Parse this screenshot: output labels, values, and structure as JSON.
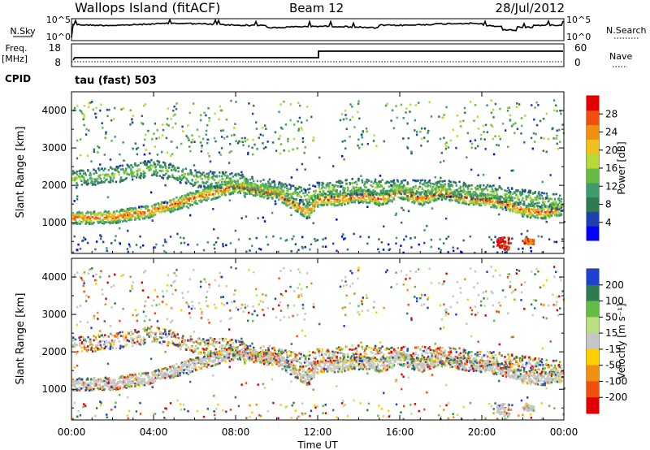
{
  "header": {
    "station": "Wallops Island (fitACF)",
    "beam": "Beam 12",
    "date": "28/Jul/2012"
  },
  "panels": {
    "noise": {
      "left_label": "N.Sky",
      "right_label": "N.Search",
      "left_ticks": [
        "10^5",
        "10^0"
      ],
      "right_ticks": [
        "10^5",
        "10^0"
      ]
    },
    "freq": {
      "left_label": "Freq.",
      "left_unit": "[MHz]",
      "right_label": "Nave",
      "left_ticks": [
        "18",
        "8"
      ],
      "right_ticks": [
        "60",
        "0"
      ]
    },
    "cpid": {
      "label": "CPID",
      "value": "tau (fast) 503"
    }
  },
  "colors": {
    "power_scale": [
      "#0000ff",
      "#1f3fae",
      "#2f7a4f",
      "#3f9a6f",
      "#66bb44",
      "#b8d83c",
      "#f0c020",
      "#f09010",
      "#ee5010",
      "#e00000"
    ],
    "velocity_scale": [
      "#2040d0",
      "#2f7a4f",
      "#66bb44",
      "#b8e080",
      "#c6c6c6",
      "#ffd000",
      "#f09010",
      "#ee5010",
      "#e00000"
    ]
  },
  "chart_data": [
    {
      "type": "heatmap",
      "title": "Power",
      "ylabel": "Slant Range [km]",
      "xlabel": "Time UT",
      "x_ticks": [
        "00:00",
        "04:00",
        "08:00",
        "12:00",
        "16:00",
        "20:00",
        "00:00"
      ],
      "xlim_hours": [
        0,
        24
      ],
      "y_ticks": [
        1000,
        2000,
        3000,
        4000
      ],
      "ylim": [
        180,
        4500
      ],
      "colorbar": {
        "label": "Power [dB]",
        "ticks": [
          4,
          8,
          12,
          16,
          20,
          24,
          28
        ],
        "range": [
          0,
          32
        ]
      },
      "bands": [
        {
          "name": "main",
          "t": [
            0,
            2,
            4,
            6,
            8,
            10,
            11.5,
            12,
            13,
            14,
            15,
            16,
            17,
            18,
            19,
            20,
            21,
            22,
            23,
            24
          ],
          "r": [
            1150,
            1180,
            1350,
            1700,
            2000,
            1800,
            1300,
            1650,
            1650,
            1750,
            1650,
            1850,
            1650,
            1850,
            1700,
            1650,
            1550,
            1350,
            1300,
            1400
          ],
          "intensity": 0.9
        },
        {
          "name": "upper",
          "t": [
            0,
            2,
            4,
            6,
            8,
            10,
            11.5,
            12,
            14,
            16,
            18,
            20,
            22,
            24
          ],
          "r": [
            2200,
            2300,
            2500,
            2200,
            2150,
            1900,
            1700,
            1900,
            2000,
            1950,
            1950,
            1850,
            1700,
            1550
          ],
          "intensity": 0.55
        }
      ]
    },
    {
      "type": "heatmap",
      "title": "Velocity",
      "ylabel": "Slant Range [km]",
      "xlabel": "Time UT",
      "x_ticks": [
        "00:00",
        "04:00",
        "08:00",
        "12:00",
        "16:00",
        "20:00",
        "00:00"
      ],
      "xlim_hours": [
        0,
        24
      ],
      "y_ticks": [
        1000,
        2000,
        3000,
        4000
      ],
      "ylim": [
        180,
        4500
      ],
      "colorbar": {
        "label": "Velocity [m s⁻¹]",
        "ticks": [
          200,
          100,
          50,
          15,
          -15,
          -50,
          -100,
          -200
        ],
        "range": [
          -250,
          250
        ]
      }
    }
  ]
}
